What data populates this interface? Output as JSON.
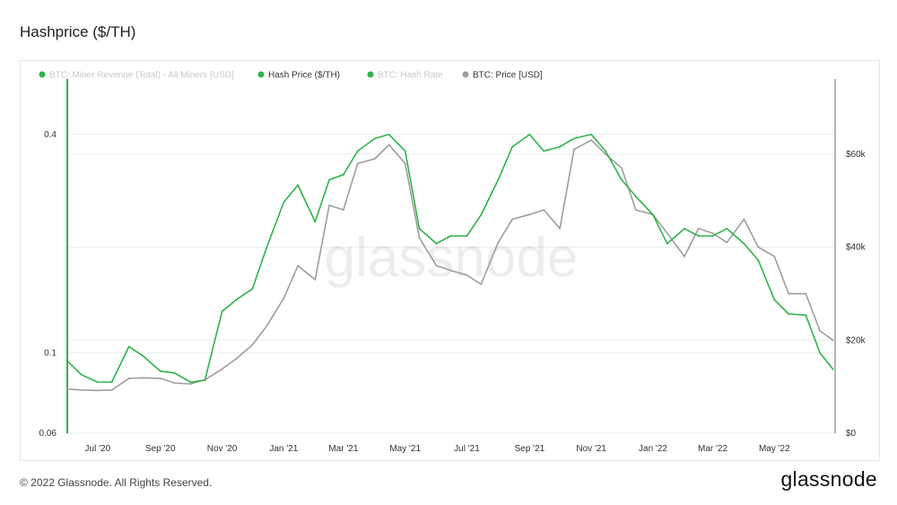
{
  "page": {
    "title": "Hashprice ($/TH)",
    "copyright": "© 2022 Glassnode. All Rights Reserved.",
    "logo": "glassnode",
    "watermark": "glassnode"
  },
  "colors": {
    "hash_price": "#2fb34a",
    "btc_price": "#9e9e9e",
    "inactive_legend": "#c8c8c8",
    "grid": "#ececec"
  },
  "chart_data": {
    "type": "line",
    "title": "Hashprice ($/TH)",
    "legend_position": "top-left",
    "legend": [
      {
        "name": "BTC: Miner Revenue (Total) - All Miners [USD]",
        "color": "#2fb34a",
        "active": false
      },
      {
        "name": "Hash Price ($/TH)",
        "color": "#2fb34a",
        "active": true
      },
      {
        "name": "BTC: Hash Rate",
        "color": "#2fb34a",
        "active": false
      },
      {
        "name": "BTC: Price [USD]",
        "color": "#9e9e9e",
        "active": true
      }
    ],
    "x_ticks": [
      "Jul '20",
      "Sep '20",
      "Nov '20",
      "Jan '21",
      "Mar '21",
      "May '21",
      "Jul '21",
      "Sep '21",
      "Nov '21",
      "Jan '22",
      "Mar '22",
      "May '22"
    ],
    "y_left": {
      "scale": "log",
      "range": [
        0.06,
        0.55
      ],
      "ticks": [
        {
          "label": "0.4",
          "value": 0.4
        },
        {
          "label": "0.1",
          "value": 0.1
        },
        {
          "label": "0.06",
          "value": 0.06
        }
      ]
    },
    "y_right": {
      "scale": "linear",
      "range": [
        0,
        75000
      ],
      "ticks": [
        {
          "label": "$60k",
          "value": 60000
        },
        {
          "label": "$40k",
          "value": 40000
        },
        {
          "label": "$20k",
          "value": 20000
        },
        {
          "label": "$0",
          "value": 0
        }
      ]
    },
    "grid": true,
    "series": [
      {
        "name": "Hash Price ($/TH)",
        "axis": "left",
        "dates": [
          "2020-06-01",
          "2020-06-15",
          "2020-07-01",
          "2020-07-15",
          "2020-08-01",
          "2020-08-15",
          "2020-09-01",
          "2020-09-15",
          "2020-10-01",
          "2020-10-15",
          "2020-11-01",
          "2020-11-15",
          "2020-12-01",
          "2020-12-15",
          "2021-01-01",
          "2021-01-15",
          "2021-02-01",
          "2021-02-15",
          "2021-03-01",
          "2021-03-15",
          "2021-04-01",
          "2021-04-15",
          "2021-05-01",
          "2021-05-15",
          "2021-06-01",
          "2021-06-15",
          "2021-07-01",
          "2021-07-15",
          "2021-08-01",
          "2021-08-15",
          "2021-09-01",
          "2021-09-15",
          "2021-10-01",
          "2021-10-15",
          "2021-11-01",
          "2021-11-15",
          "2021-12-01",
          "2021-12-15",
          "2022-01-01",
          "2022-01-15",
          "2022-02-01",
          "2022-02-15",
          "2022-03-01",
          "2022-03-15",
          "2022-04-01",
          "2022-04-15",
          "2022-05-01",
          "2022-05-15",
          "2022-06-01",
          "2022-06-15",
          "2022-06-28"
        ],
        "values": [
          0.095,
          0.087,
          0.083,
          0.083,
          0.104,
          0.098,
          0.089,
          0.088,
          0.083,
          0.084,
          0.13,
          0.14,
          0.15,
          0.195,
          0.26,
          0.29,
          0.23,
          0.3,
          0.31,
          0.36,
          0.39,
          0.4,
          0.36,
          0.22,
          0.2,
          0.21,
          0.21,
          0.24,
          0.3,
          0.37,
          0.4,
          0.36,
          0.37,
          0.39,
          0.4,
          0.36,
          0.3,
          0.27,
          0.24,
          0.2,
          0.22,
          0.21,
          0.21,
          0.22,
          0.2,
          0.18,
          0.14,
          0.128,
          0.127,
          0.1,
          0.09
        ]
      },
      {
        "name": "BTC: Price [USD]",
        "axis": "right",
        "dates": [
          "2020-06-01",
          "2020-06-15",
          "2020-07-01",
          "2020-07-15",
          "2020-08-01",
          "2020-08-15",
          "2020-09-01",
          "2020-09-15",
          "2020-10-01",
          "2020-10-15",
          "2020-11-01",
          "2020-11-15",
          "2020-12-01",
          "2020-12-15",
          "2021-01-01",
          "2021-01-15",
          "2021-02-01",
          "2021-02-15",
          "2021-03-01",
          "2021-03-15",
          "2021-04-01",
          "2021-04-15",
          "2021-05-01",
          "2021-05-15",
          "2021-06-01",
          "2021-06-15",
          "2021-07-01",
          "2021-07-15",
          "2021-08-01",
          "2021-08-15",
          "2021-09-01",
          "2021-09-15",
          "2021-10-01",
          "2021-10-15",
          "2021-11-01",
          "2021-11-15",
          "2021-12-01",
          "2021-12-15",
          "2022-01-01",
          "2022-01-15",
          "2022-02-01",
          "2022-02-15",
          "2022-03-01",
          "2022-03-15",
          "2022-04-01",
          "2022-04-15",
          "2022-05-01",
          "2022-05-15",
          "2022-06-01",
          "2022-06-15",
          "2022-06-28"
        ],
        "values": [
          9500,
          9300,
          9200,
          9300,
          11800,
          11900,
          11800,
          10800,
          10600,
          11500,
          13800,
          16000,
          19000,
          23000,
          29000,
          36000,
          33000,
          49000,
          48000,
          58000,
          59000,
          62000,
          58000,
          42000,
          36000,
          35000,
          34000,
          32000,
          41000,
          46000,
          47000,
          48000,
          44000,
          61000,
          63000,
          60000,
          57000,
          48000,
          47000,
          43000,
          38000,
          44000,
          43000,
          41000,
          46000,
          40000,
          38000,
          30000,
          30000,
          22000,
          20000
        ]
      }
    ]
  }
}
